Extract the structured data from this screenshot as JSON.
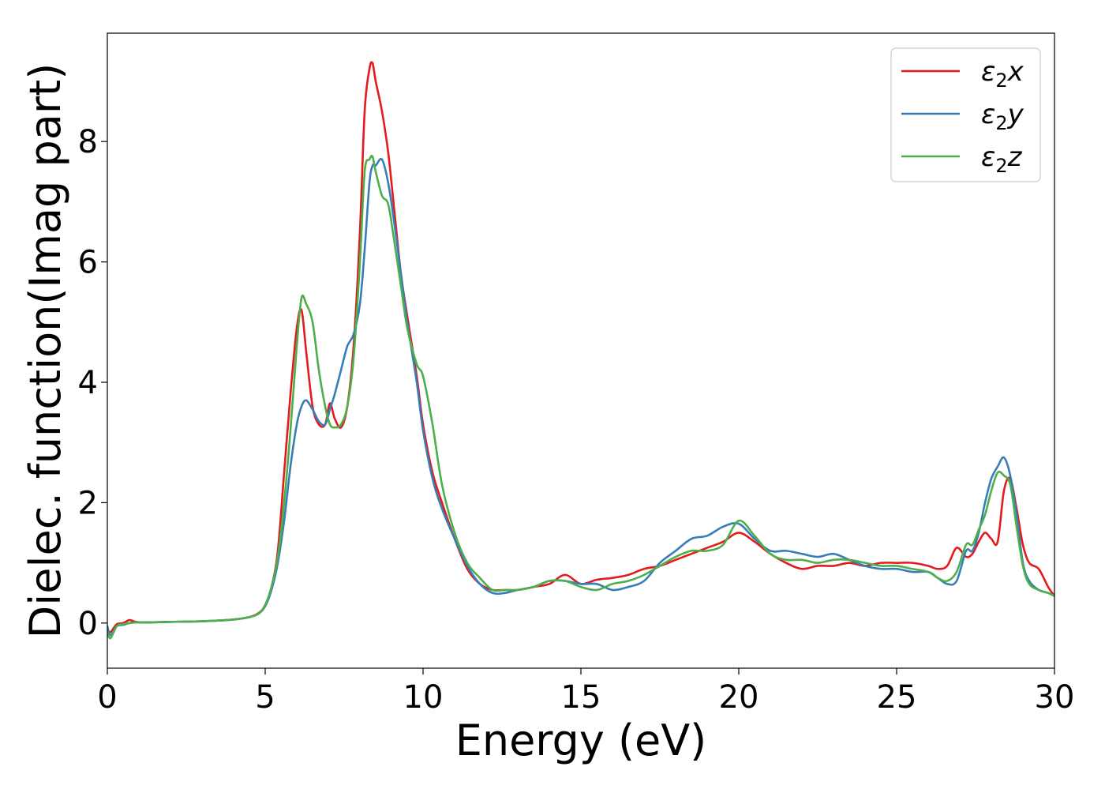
{
  "chart_data": {
    "type": "line",
    "title": "",
    "xlabel": "Energy (eV)",
    "ylabel": "Dielec. function(Imag part)",
    "xlim": [
      0,
      30
    ],
    "ylim": [
      -0.75,
      9.8
    ],
    "xticks": [
      0,
      5,
      10,
      15,
      20,
      25,
      30
    ],
    "yticks": [
      0,
      2,
      4,
      6,
      8
    ],
    "grid": false,
    "legend_position": "top-right",
    "series": [
      {
        "name": "ε₂x",
        "legend": {
          "base": "ε",
          "sub": "2",
          "suffix": "x"
        },
        "color": "#e41a1c",
        "x": [
          0,
          0.1,
          0.3,
          0.5,
          0.7,
          0.9,
          1.2,
          2.0,
          3.0,
          4.0,
          4.5,
          4.8,
          5.0,
          5.2,
          5.4,
          5.6,
          5.8,
          6.0,
          6.15,
          6.3,
          6.5,
          6.7,
          6.9,
          7.05,
          7.2,
          7.4,
          7.6,
          7.8,
          8.0,
          8.15,
          8.3,
          8.4,
          8.5,
          8.7,
          8.9,
          9.1,
          9.3,
          9.5,
          9.8,
          10.0,
          10.3,
          10.6,
          11.0,
          11.4,
          11.8,
          12.2,
          12.6,
          13.0,
          13.5,
          14.0,
          14.5,
          15.0,
          15.5,
          16.0,
          16.5,
          17.0,
          17.5,
          18.0,
          18.5,
          19.0,
          19.5,
          20.0,
          20.5,
          21.0,
          21.5,
          22.0,
          22.5,
          23.0,
          23.5,
          24.0,
          24.5,
          25.0,
          25.5,
          26.0,
          26.3,
          26.6,
          26.9,
          27.2,
          27.4,
          27.6,
          27.8,
          28.0,
          28.2,
          28.4,
          28.6,
          28.8,
          29.0,
          29.2,
          29.5,
          29.8,
          30.0
        ],
        "y": [
          -0.1,
          -0.15,
          -0.02,
          0.0,
          0.05,
          0.02,
          0.01,
          0.02,
          0.03,
          0.06,
          0.1,
          0.17,
          0.3,
          0.6,
          1.2,
          2.5,
          3.8,
          4.9,
          5.2,
          4.5,
          3.6,
          3.3,
          3.3,
          3.65,
          3.4,
          3.25,
          3.6,
          4.6,
          6.5,
          8.5,
          9.2,
          9.3,
          9.0,
          8.5,
          7.8,
          6.8,
          5.8,
          5.1,
          4.1,
          3.3,
          2.5,
          2.0,
          1.4,
          0.9,
          0.65,
          0.55,
          0.55,
          0.55,
          0.6,
          0.65,
          0.8,
          0.65,
          0.72,
          0.75,
          0.8,
          0.9,
          0.95,
          1.05,
          1.15,
          1.25,
          1.35,
          1.5,
          1.35,
          1.15,
          1.0,
          0.9,
          0.95,
          0.95,
          1.0,
          0.95,
          1.0,
          1.0,
          1.0,
          0.95,
          0.9,
          0.95,
          1.25,
          1.1,
          1.15,
          1.35,
          1.5,
          1.4,
          1.35,
          2.2,
          2.4,
          1.9,
          1.3,
          1.0,
          0.9,
          0.6,
          0.45
        ]
      },
      {
        "name": "ε₂y",
        "legend": {
          "base": "ε",
          "sub": "2",
          "suffix": "y"
        },
        "color": "#377eb8",
        "x": [
          0,
          0.1,
          0.3,
          0.5,
          0.7,
          0.9,
          1.2,
          2.0,
          3.0,
          4.0,
          4.5,
          4.8,
          5.0,
          5.2,
          5.4,
          5.6,
          5.8,
          6.0,
          6.15,
          6.3,
          6.5,
          6.7,
          6.9,
          7.05,
          7.2,
          7.4,
          7.6,
          7.8,
          8.0,
          8.15,
          8.3,
          8.4,
          8.5,
          8.7,
          8.9,
          9.1,
          9.3,
          9.5,
          9.8,
          10.0,
          10.3,
          10.6,
          11.0,
          11.4,
          11.8,
          12.2,
          12.6,
          13.0,
          13.5,
          14.0,
          14.5,
          15.0,
          15.5,
          16.0,
          16.5,
          17.0,
          17.5,
          18.0,
          18.5,
          19.0,
          19.5,
          20.0,
          20.5,
          21.0,
          21.5,
          22.0,
          22.5,
          23.0,
          23.5,
          24.0,
          24.5,
          25.0,
          25.5,
          26.0,
          26.3,
          26.6,
          26.9,
          27.2,
          27.4,
          27.6,
          27.8,
          28.0,
          28.2,
          28.4,
          28.6,
          28.8,
          29.0,
          29.2,
          29.5,
          29.8,
          30.0
        ],
        "y": [
          -0.05,
          -0.2,
          -0.05,
          -0.03,
          0.0,
          0.01,
          0.01,
          0.02,
          0.03,
          0.06,
          0.1,
          0.16,
          0.28,
          0.55,
          1.0,
          1.7,
          2.6,
          3.3,
          3.6,
          3.7,
          3.55,
          3.35,
          3.3,
          3.55,
          3.8,
          4.2,
          4.6,
          4.8,
          5.3,
          6.2,
          7.3,
          7.6,
          7.6,
          7.7,
          7.3,
          6.6,
          5.8,
          5.0,
          4.0,
          3.2,
          2.4,
          1.9,
          1.4,
          0.95,
          0.65,
          0.5,
          0.5,
          0.55,
          0.6,
          0.7,
          0.7,
          0.65,
          0.65,
          0.55,
          0.6,
          0.7,
          1.0,
          1.2,
          1.4,
          1.45,
          1.6,
          1.65,
          1.4,
          1.2,
          1.2,
          1.15,
          1.1,
          1.15,
          1.05,
          0.95,
          0.9,
          0.9,
          0.85,
          0.85,
          0.75,
          0.65,
          0.7,
          1.2,
          1.2,
          1.5,
          2.0,
          2.4,
          2.6,
          2.75,
          2.45,
          1.8,
          1.0,
          0.7,
          0.55,
          0.5,
          0.45
        ]
      },
      {
        "name": "ε₂z",
        "legend": {
          "base": "ε",
          "sub": "2",
          "suffix": "z"
        },
        "color": "#4daf4a",
        "x": [
          0,
          0.1,
          0.3,
          0.5,
          0.7,
          0.9,
          1.2,
          2.0,
          3.0,
          4.0,
          4.5,
          4.8,
          5.0,
          5.2,
          5.4,
          5.6,
          5.8,
          6.0,
          6.15,
          6.3,
          6.5,
          6.7,
          6.9,
          7.05,
          7.2,
          7.4,
          7.6,
          7.8,
          8.0,
          8.15,
          8.3,
          8.4,
          8.5,
          8.7,
          8.9,
          9.1,
          9.3,
          9.5,
          9.8,
          10.0,
          10.3,
          10.6,
          11.0,
          11.4,
          11.8,
          12.2,
          12.6,
          13.0,
          13.5,
          14.0,
          14.5,
          15.0,
          15.5,
          16.0,
          16.5,
          17.0,
          17.5,
          18.0,
          18.5,
          19.0,
          19.5,
          20.0,
          20.5,
          21.0,
          21.5,
          22.0,
          22.5,
          23.0,
          23.5,
          24.0,
          24.5,
          25.0,
          25.5,
          26.0,
          26.3,
          26.6,
          26.9,
          27.2,
          27.4,
          27.6,
          27.8,
          28.0,
          28.2,
          28.4,
          28.6,
          28.8,
          29.0,
          29.2,
          29.5,
          29.8,
          30.0
        ],
        "y": [
          -0.15,
          -0.25,
          -0.05,
          -0.02,
          0.0,
          0.01,
          0.01,
          0.02,
          0.03,
          0.06,
          0.1,
          0.16,
          0.3,
          0.6,
          1.1,
          2.0,
          3.2,
          4.6,
          5.4,
          5.3,
          5.0,
          4.2,
          3.6,
          3.3,
          3.25,
          3.3,
          3.6,
          4.4,
          6.0,
          7.5,
          7.7,
          7.75,
          7.5,
          7.1,
          6.95,
          6.3,
          5.6,
          4.9,
          4.3,
          4.1,
          3.3,
          2.3,
          1.5,
          1.0,
          0.75,
          0.55,
          0.55,
          0.55,
          0.6,
          0.7,
          0.7,
          0.6,
          0.55,
          0.65,
          0.7,
          0.8,
          0.95,
          1.1,
          1.2,
          1.2,
          1.3,
          1.7,
          1.45,
          1.15,
          1.05,
          1.05,
          1.0,
          1.05,
          1.05,
          1.0,
          0.95,
          0.95,
          0.9,
          0.85,
          0.75,
          0.7,
          0.85,
          1.3,
          1.3,
          1.55,
          1.8,
          2.2,
          2.5,
          2.45,
          2.3,
          1.6,
          0.95,
          0.65,
          0.55,
          0.5,
          0.45
        ]
      }
    ]
  }
}
